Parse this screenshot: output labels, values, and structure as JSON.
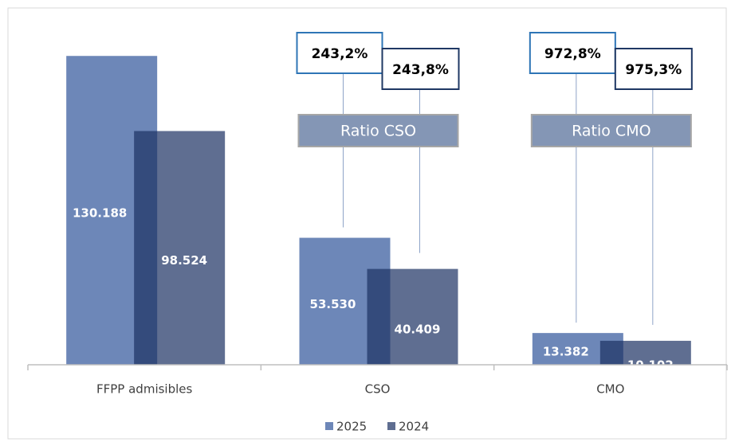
{
  "chart_data": {
    "type": "bar",
    "categories": [
      "FFPP admisibles",
      "CSO",
      "CMO"
    ],
    "series": [
      {
        "name": "2025",
        "color": "#6d87b8",
        "values": [
          130188,
          53530,
          13382
        ],
        "value_labels": [
          "130.188",
          "53.530",
          "13.382"
        ]
      },
      {
        "name": "2024",
        "color": "#1c3163",
        "values": [
          98524,
          40409,
          10102
        ],
        "value_labels": [
          "98.524",
          "40.409",
          "10.102"
        ]
      }
    ],
    "ylim": [
      0,
      140000
    ],
    "legend": "bottom",
    "annotations": [
      {
        "category": "CSO",
        "label": "Ratio CSO",
        "values": [
          243.2,
          243.8
        ],
        "value_labels": [
          "243,2%",
          "243,8%"
        ]
      },
      {
        "category": "CMO",
        "label": "Ratio CMO",
        "values": [
          972.8,
          975.3
        ],
        "value_labels": [
          "972,8%",
          "975,3%"
        ]
      }
    ]
  }
}
